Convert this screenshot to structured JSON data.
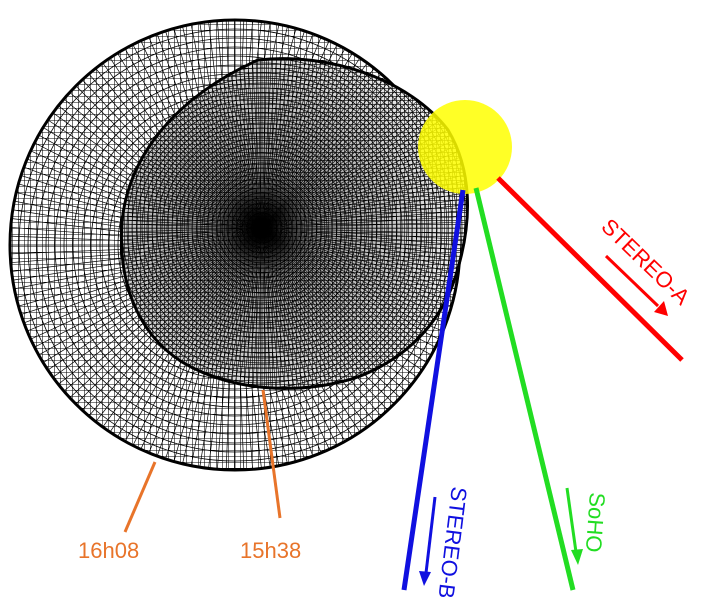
{
  "diagram": {
    "labels": {
      "time_outer": "16h08",
      "time_inner": "15h38",
      "stereo_a": "STEREO-A",
      "stereo_b": "STEREO-B",
      "soho": "SoHO"
    },
    "colors": {
      "background": "#ffffff",
      "mesh": "#000000",
      "sun": "#ffff00",
      "stereo_a": "#ff0000",
      "stereo_b": "#1010e0",
      "soho": "#22dd22",
      "time_label": "#e8742a"
    }
  }
}
